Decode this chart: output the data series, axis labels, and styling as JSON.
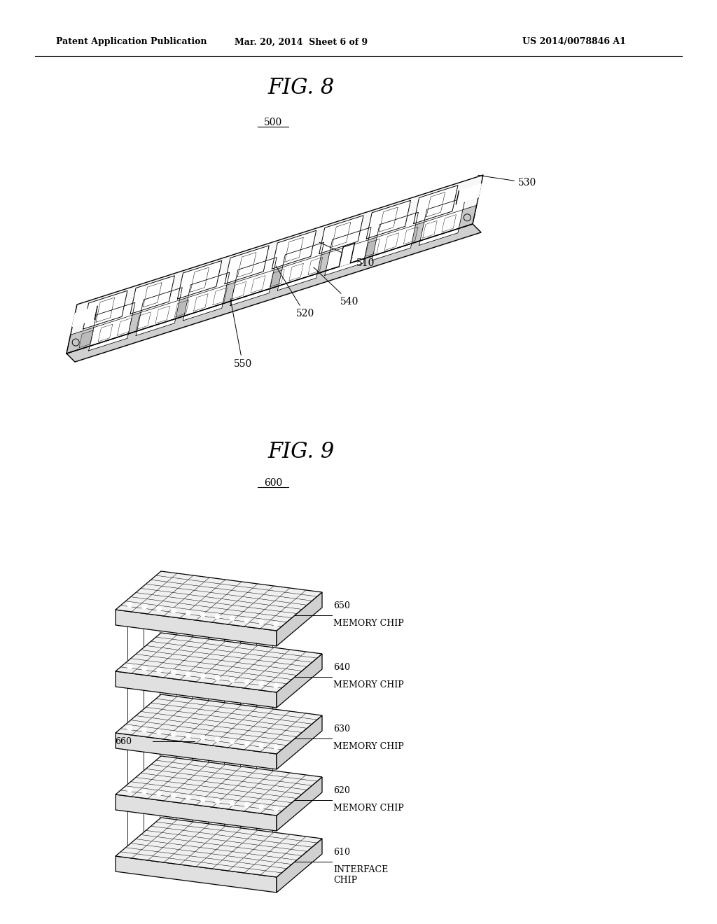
{
  "background_color": "#ffffff",
  "header_left": "Patent Application Publication",
  "header_center": "Mar. 20, 2014  Sheet 6 of 9",
  "header_right": "US 2014/0078846 A1",
  "fig8_title": "FIG. 8",
  "fig9_title": "FIG. 9",
  "fig8_label": "500",
  "fig9_label": "600",
  "label_510": "510",
  "label_520": "520",
  "label_530": "530",
  "label_540": "540",
  "label_550": "550",
  "label_610": "610",
  "label_620": "620",
  "label_630": "630",
  "label_640": "640",
  "label_650": "650",
  "label_660": "660",
  "text_memory_chip": "MEMORY CHIP",
  "text_interface_chip": "INTERFACE\nCHIP"
}
